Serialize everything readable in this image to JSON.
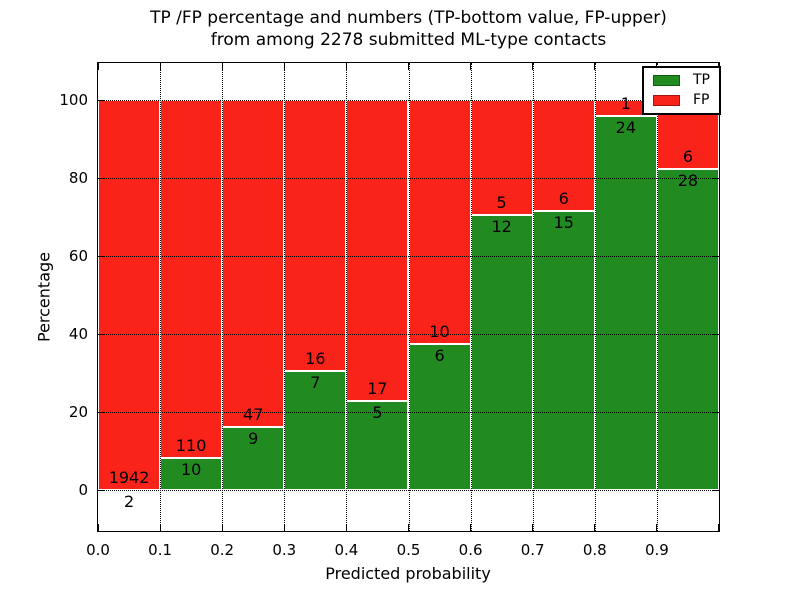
{
  "title": {
    "line1": "TP /FP percentage and numbers (TP-bottom value, FP-upper)",
    "line2": "from among 2278 submitted ML-type contacts"
  },
  "chart_data": {
    "type": "bar",
    "variant": "stacked-100-percent",
    "title": "TP /FP percentage and numbers (TP-bottom value, FP-upper) from among 2278 submitted ML-type contacts",
    "xlabel": "Predicted probability",
    "ylabel": "Percentage",
    "total_contacts": 2278,
    "bin_width": 0.1,
    "bin_starts": [
      0.0,
      0.1,
      0.2,
      0.3,
      0.4,
      0.5,
      0.6,
      0.7,
      0.8,
      0.9
    ],
    "x_tick_labels": [
      "0.0",
      "0.1",
      "0.2",
      "0.3",
      "0.4",
      "0.5",
      "0.6",
      "0.7",
      "0.8",
      "0.9"
    ],
    "y_ticks": [
      0,
      20,
      40,
      60,
      80,
      100
    ],
    "xlim": [
      0.0,
      1.0
    ],
    "ylim": [
      -10,
      110
    ],
    "grid": "dotted",
    "legend_position": "upper right",
    "series": [
      {
        "name": "TP",
        "color": "#218a21",
        "counts": [
          2,
          10,
          9,
          7,
          5,
          6,
          12,
          15,
          24,
          28
        ]
      },
      {
        "name": "FP",
        "color": "#fa2319",
        "counts": [
          1942,
          110,
          47,
          16,
          17,
          10,
          5,
          6,
          1,
          6
        ]
      }
    ],
    "tp_percent_per_bin": [
      0.1,
      8.3,
      16.1,
      30.4,
      22.7,
      37.5,
      70.6,
      71.4,
      96.0,
      82.4
    ]
  },
  "colors": {
    "tp_green": "#218a21",
    "fp_red": "#fa2319",
    "bar_edge": "#ffffff",
    "axis": "#000000",
    "background": "#ffffff"
  }
}
